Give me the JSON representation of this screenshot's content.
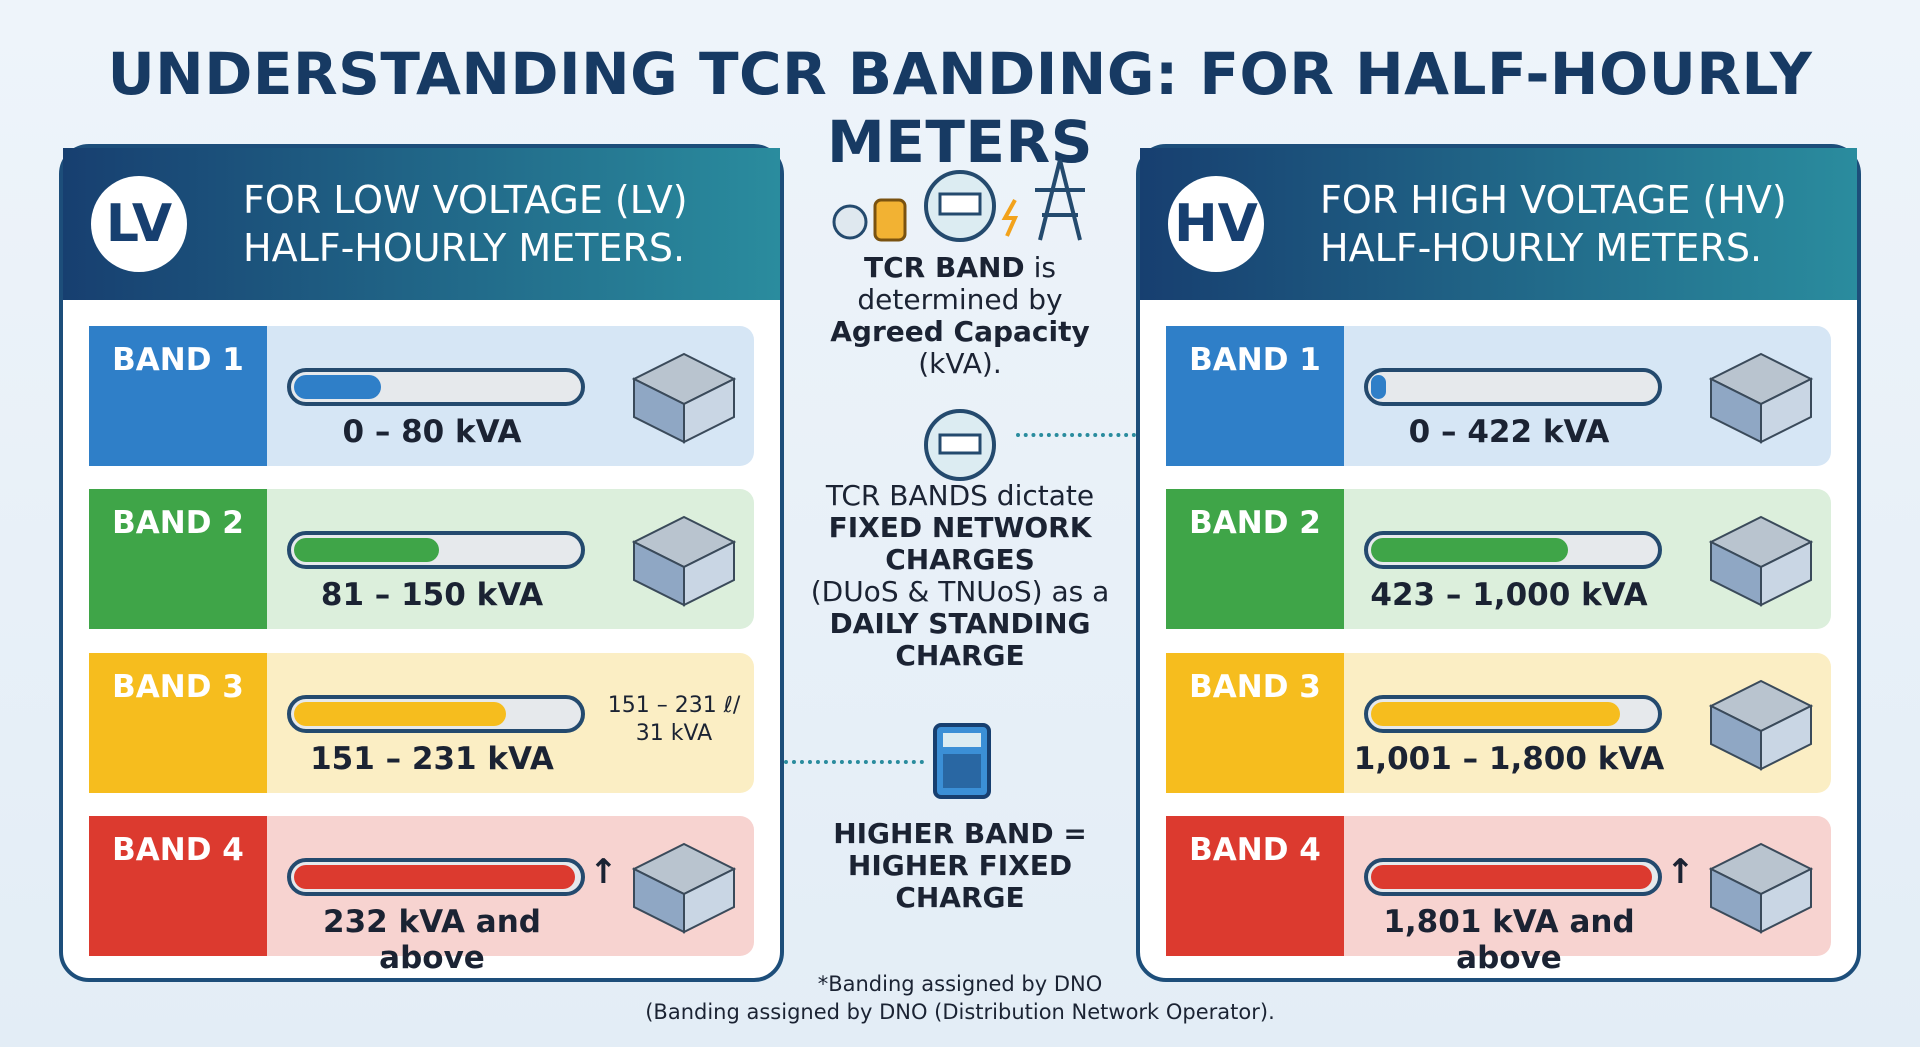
{
  "title": "UNDERSTANDING TCR BANDING: FOR HALF-HOURLY METERS",
  "panels": [
    {
      "badge": "LV",
      "heading": [
        "FOR LOW VOLTAGE (LV)",
        "HALF-HOURLY METERS."
      ],
      "bands": [
        {
          "label": "BAND 1",
          "range": "0 – 80 kVA"
        },
        {
          "label": "BAND 2",
          "range": "81 – 150 kVA"
        },
        {
          "label": "BAND 3",
          "range": "151 – 231 kVA",
          "note": [
            "151 – 231 ℓ/",
            "31 kVA"
          ]
        },
        {
          "label": "BAND 4",
          "range": "232 kVA and above",
          "arrow": "↑"
        }
      ]
    },
    {
      "badge": "HV",
      "heading": [
        "FOR HIGH VOLTAGE (HV)",
        "HALF-HOURLY METERS."
      ],
      "bands": [
        {
          "label": "BAND 1",
          "range": "0 – 422 kVA"
        },
        {
          "label": "BAND 2",
          "range": "423 – 1,000 kVA"
        },
        {
          "label": "BAND 3",
          "range": "1,001 – 1,800 kVA"
        },
        {
          "label": "BAND 4",
          "range": "1,801 kVA and above",
          "arrow": "↑"
        }
      ]
    }
  ],
  "center": [
    [
      [
        {
          "text": "TCR BAND",
          "bold": true
        },
        {
          "text": " is",
          "bold": false
        }
      ],
      [
        {
          "text": "determined by",
          "bold": false
        }
      ],
      [
        {
          "text": "Agreed Capacity",
          "bold": true
        }
      ],
      [
        {
          "text": "(kVA).",
          "bold": false
        }
      ]
    ],
    [
      [
        {
          "text": "TCR BANDS dictate",
          "bold": false
        }
      ],
      [
        {
          "text": "FIXED NETWORK",
          "bold": true
        }
      ],
      [
        {
          "text": "CHARGES",
          "bold": true
        }
      ],
      [
        {
          "text": "(DUoS & TNUoS) as a",
          "bold": false
        }
      ],
      [
        {
          "text": "DAILY STANDING",
          "bold": true
        }
      ],
      [
        {
          "text": "CHARGE",
          "bold": true
        }
      ]
    ],
    [
      [
        {
          "text": "HIGHER BAND =",
          "bold": true
        }
      ],
      [
        {
          "text": "HIGHER FIXED",
          "bold": true
        }
      ],
      [
        {
          "text": "CHARGE",
          "bold": true
        }
      ]
    ]
  ],
  "footnote": [
    "*Banding assigned by DNO",
    "(Banding assigned by DNO (Distribution Network Operator)."
  ]
}
